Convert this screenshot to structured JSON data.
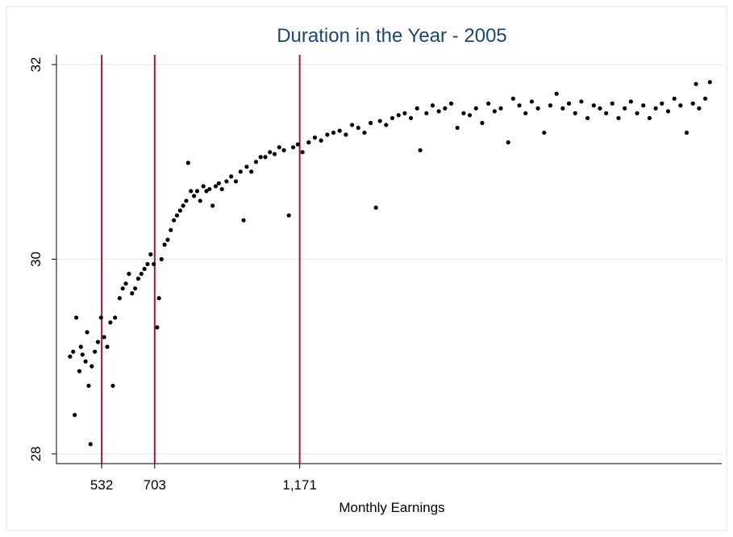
{
  "chart_data": {
    "type": "scatter",
    "title": "Duration in the Year - 2005",
    "x_label": "Monthly Earnings",
    "xlim": [
      386,
      2533
    ],
    "ylim": [
      27.9,
      32.1
    ],
    "xticks": [
      532,
      703,
      {
        "value": 1171,
        "label": "1,171"
      }
    ],
    "yticks": [
      28,
      30,
      32
    ],
    "xlines": [
      532,
      703,
      1171
    ],
    "xline_color": "#a3164a",
    "grid": true,
    "grid_color": "#e8eef2",
    "point_color": "#000000",
    "title_color": "#1a476f",
    "x": [
      430,
      440,
      445,
      450,
      460,
      465,
      470,
      480,
      485,
      490,
      496,
      500,
      510,
      520,
      530,
      540,
      550,
      560,
      568,
      575,
      590,
      600,
      610,
      620,
      630,
      640,
      650,
      660,
      670,
      680,
      690,
      700,
      711,
      717,
      725,
      735,
      745,
      755,
      765,
      775,
      785,
      795,
      805,
      811,
      820,
      830,
      840,
      850,
      860,
      870,
      880,
      890,
      900,
      910,
      920,
      935,
      950,
      965,
      980,
      990,
      1000,
      1015,
      1030,
      1045,
      1060,
      1075,
      1090,
      1105,
      1120,
      1136,
      1150,
      1165,
      1180,
      1200,
      1220,
      1240,
      1260,
      1280,
      1300,
      1320,
      1340,
      1360,
      1380,
      1400,
      1417,
      1430,
      1450,
      1470,
      1490,
      1510,
      1530,
      1550,
      1560,
      1580,
      1600,
      1620,
      1640,
      1660,
      1680,
      1700,
      1720,
      1740,
      1760,
      1780,
      1800,
      1820,
      1844,
      1860,
      1880,
      1900,
      1920,
      1940,
      1960,
      1980,
      2000,
      2020,
      2040,
      2060,
      2080,
      2100,
      2120,
      2140,
      2160,
      2180,
      2200,
      2220,
      2240,
      2260,
      2280,
      2300,
      2320,
      2340,
      2360,
      2380,
      2400,
      2420,
      2440,
      2450,
      2460,
      2480,
      2495
    ],
    "values": [
      29.0,
      29.05,
      28.4,
      29.4,
      28.85,
      29.1,
      29.02,
      28.95,
      29.25,
      28.7,
      28.1,
      28.9,
      29.05,
      29.15,
      29.4,
      29.2,
      29.1,
      29.35,
      28.7,
      29.4,
      29.6,
      29.7,
      29.75,
      29.85,
      29.65,
      29.7,
      29.8,
      29.85,
      29.9,
      29.95,
      30.05,
      29.95,
      29.3,
      29.6,
      30.0,
      30.15,
      30.2,
      30.3,
      30.4,
      30.45,
      30.5,
      30.55,
      30.6,
      30.99,
      30.7,
      30.65,
      30.7,
      30.6,
      30.75,
      30.7,
      30.72,
      30.55,
      30.75,
      30.78,
      30.72,
      30.8,
      30.85,
      30.8,
      30.9,
      30.4,
      30.95,
      30.9,
      31.0,
      31.05,
      31.05,
      31.1,
      31.08,
      31.15,
      31.12,
      30.45,
      31.15,
      31.18,
      31.1,
      31.2,
      31.25,
      31.22,
      31.28,
      31.3,
      31.32,
      31.28,
      31.38,
      31.35,
      31.3,
      31.4,
      30.53,
      31.42,
      31.38,
      31.45,
      31.48,
      31.5,
      31.45,
      31.55,
      31.12,
      31.5,
      31.58,
      31.52,
      31.55,
      31.6,
      31.35,
      31.5,
      31.48,
      31.55,
      31.4,
      31.6,
      31.52,
      31.55,
      31.2,
      31.65,
      31.58,
      31.5,
      31.62,
      31.55,
      31.3,
      31.58,
      31.7,
      31.55,
      31.6,
      31.5,
      31.62,
      31.45,
      31.58,
      31.55,
      31.5,
      31.6,
      31.45,
      31.55,
      31.62,
      31.5,
      31.58,
      31.45,
      31.55,
      31.6,
      31.52,
      31.65,
      31.58,
      31.3,
      31.6,
      31.8,
      31.55,
      31.65,
      31.82
    ]
  }
}
